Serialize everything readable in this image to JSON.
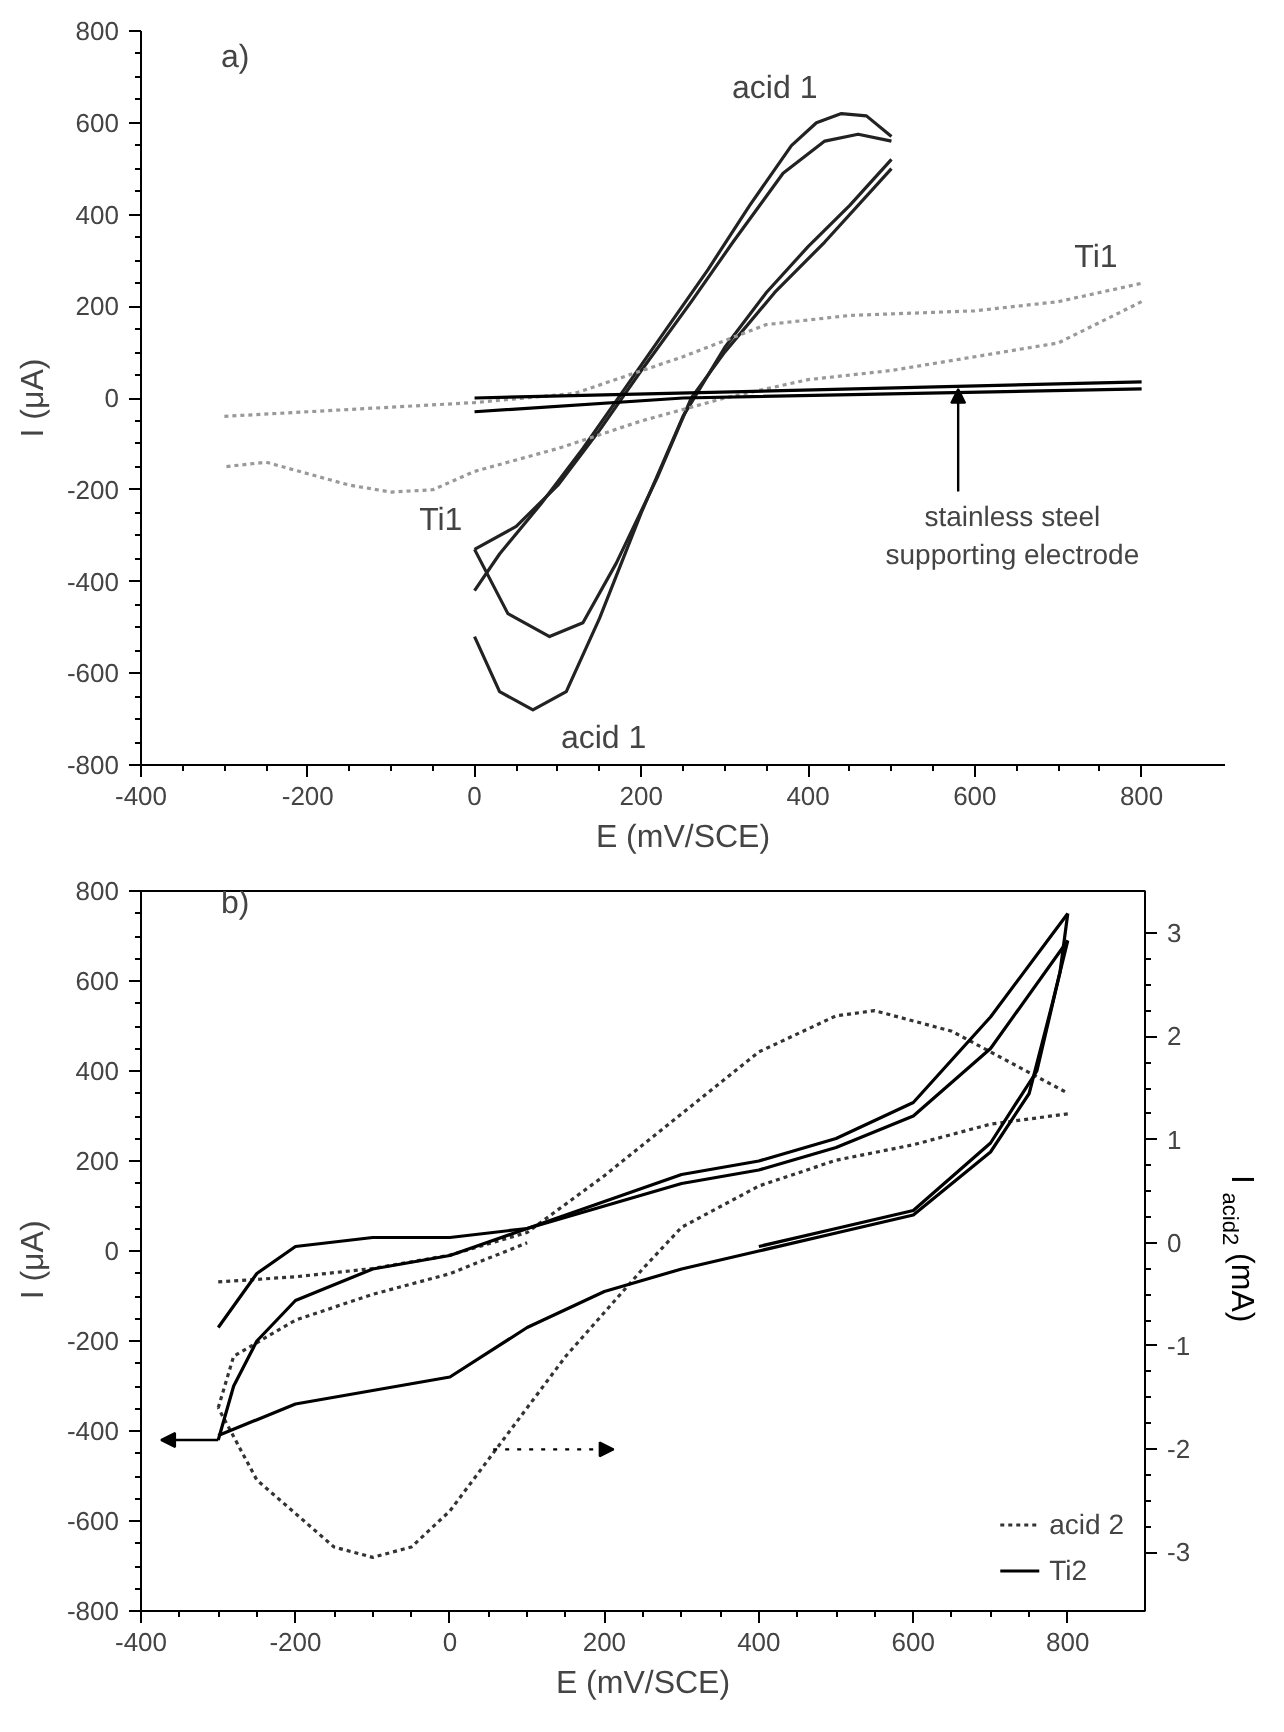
{
  "chart_data": [
    {
      "type": "line",
      "title": "a)",
      "xlabel": "E (mV/SCE)",
      "ylabel": "I (μA)",
      "xlim": [
        -400,
        900
      ],
      "ylim": [
        -800,
        800
      ],
      "xticks": [
        -400,
        -200,
        0,
        200,
        400,
        600,
        800
      ],
      "yticks": [
        -800,
        -600,
        -400,
        -200,
        0,
        200,
        400,
        600,
        800
      ],
      "grid": false,
      "legend": false,
      "series": [
        {
          "name": "acid 1",
          "color": "#222222",
          "line_style": "solid",
          "x": [
            0,
            30,
            70,
            110,
            150,
            200,
            250,
            270,
            300,
            350,
            400,
            450,
            500
          ],
          "values": [
            -520,
            -640,
            -680,
            -640,
            -480,
            -250,
            -40,
            20,
            110,
            230,
            330,
            420,
            520
          ]
        },
        {
          "color": "#222222",
          "line_style": "solid",
          "x": [
            500,
            470,
            440,
            410,
            380,
            330,
            280,
            230,
            180,
            130,
            80,
            30,
            0
          ],
          "values": [
            570,
            615,
            620,
            600,
            550,
            420,
            280,
            150,
            20,
            -110,
            -230,
            -340,
            -420
          ]
        },
        {
          "color": "#222222",
          "line_style": "solid",
          "x": [
            0,
            40,
            90,
            130,
            170,
            220,
            260,
            300,
            360,
            420,
            500
          ],
          "values": [
            -330,
            -470,
            -520,
            -490,
            -360,
            -170,
            0,
            100,
            230,
            340,
            500
          ]
        },
        {
          "color": "#222222",
          "line_style": "solid",
          "x": [
            500,
            460,
            420,
            370,
            310,
            260,
            200,
            150,
            100,
            50,
            0
          ],
          "values": [
            560,
            575,
            560,
            490,
            340,
            210,
            60,
            -70,
            -190,
            -280,
            -330
          ]
        },
        {
          "name": "Ti1",
          "color": "#999999",
          "line_style": "dotted",
          "x": [
            -300,
            -200,
            -100,
            0,
            120,
            250,
            350,
            450,
            600,
            700,
            800
          ],
          "values": [
            -40,
            -30,
            -20,
            -10,
            10,
            90,
            160,
            180,
            190,
            210,
            250
          ]
        },
        {
          "color": "#999999",
          "line_style": "dotted",
          "x": [
            800,
            700,
            500,
            400,
            300,
            200,
            100,
            0,
            -50,
            -100,
            -150,
            -250,
            -300
          ],
          "values": [
            210,
            120,
            60,
            40,
            0,
            -50,
            -110,
            -160,
            -200,
            -205,
            -190,
            -140,
            -150
          ]
        },
        {
          "color": "#000000",
          "line_style": "solid",
          "x": [
            0,
            800
          ],
          "values": [
            0,
            35
          ]
        },
        {
          "color": "#000000",
          "line_style": "solid",
          "x": [
            800,
            250,
            0
          ],
          "values": [
            20,
            0,
            -30
          ]
        }
      ],
      "annotations": [
        {
          "text": "stainless steel\nsupporting electrode",
          "x": 580,
          "y": 20
        }
      ]
    },
    {
      "type": "line",
      "title": "b)",
      "xlabel": "E (mV/SCE)",
      "ylabel": "I   (μA)",
      "y2label": "I$_{acid2}$ (mA)",
      "xlim": [
        -400,
        900
      ],
      "ylim": [
        -800,
        800
      ],
      "y2lim": [
        -3.57,
        3.41
      ],
      "xticks": [
        -400,
        -200,
        0,
        200,
        400,
        600,
        800
      ],
      "yticks": [
        -800,
        -600,
        -400,
        -200,
        0,
        200,
        400,
        600,
        800
      ],
      "y2ticks": [
        -3,
        -2,
        -1,
        0,
        1,
        2,
        3
      ],
      "grid": false,
      "legend": "bottom right",
      "series": [
        {
          "axis": "y2",
          "color": "#333333",
          "line_style": "dotted",
          "x": [
            -300,
            -200,
            -100,
            0,
            100,
            200,
            300,
            400,
            500,
            550,
            650,
            750,
            800
          ],
          "values": [
            -0.38,
            -0.33,
            -0.25,
            -0.12,
            0.1,
            0.65,
            1.25,
            1.85,
            2.2,
            2.25,
            2.05,
            1.65,
            1.45
          ]
        },
        {
          "name": "acid 2",
          "axis": "y2",
          "color": "#333333",
          "line_style": "dotted",
          "x": [
            800,
            700,
            600,
            500,
            400,
            300,
            250,
            150,
            50,
            0,
            -50,
            -100,
            -150,
            -250,
            -300
          ],
          "values": [
            1.25,
            1.15,
            0.95,
            0.8,
            0.55,
            0.15,
            -0.25,
            -1.1,
            -2.1,
            -2.6,
            -2.95,
            -3.05,
            -2.95,
            -2.3,
            -1.6
          ]
        },
        {
          "axis": "y2",
          "color": "#333333",
          "line_style": "dotted",
          "x": [
            -300,
            -280,
            -200,
            -100,
            0,
            100
          ],
          "values": [
            -1.6,
            -1.1,
            -0.75,
            -0.5,
            -0.3,
            0.0
          ]
        },
        {
          "name": "Ti2",
          "color": "#000000",
          "line_style": "solid",
          "x": [
            -300,
            -280,
            -250,
            -200,
            -100,
            0,
            100,
            200,
            300,
            400,
            500,
            600,
            700,
            800
          ],
          "values": [
            -420,
            -300,
            -200,
            -110,
            -40,
            -10,
            50,
            100,
            150,
            180,
            230,
            300,
            450,
            690
          ]
        },
        {
          "color": "#000000",
          "line_style": "solid",
          "x": [
            800,
            780,
            750,
            700,
            600,
            500,
            400,
            300,
            200,
            100,
            0,
            -100,
            -200,
            -300
          ],
          "values": [
            690,
            550,
            350,
            220,
            80,
            40,
            0,
            -40,
            -90,
            -170,
            -280,
            -310,
            -340,
            -410
          ]
        },
        {
          "color": "#000000",
          "line_style": "solid",
          "x": [
            -300,
            -250,
            -200,
            -100,
            0,
            100,
            200,
            300,
            400,
            500,
            600,
            700,
            800
          ],
          "values": [
            -170,
            -50,
            10,
            30,
            30,
            50,
            110,
            170,
            200,
            250,
            330,
            520,
            750
          ]
        },
        {
          "color": "#000000",
          "line_style": "solid",
          "x": [
            800,
            790,
            760,
            700,
            600,
            500,
            400
          ],
          "values": [
            750,
            620,
            400,
            240,
            90,
            50,
            10
          ]
        }
      ]
    }
  ]
}
